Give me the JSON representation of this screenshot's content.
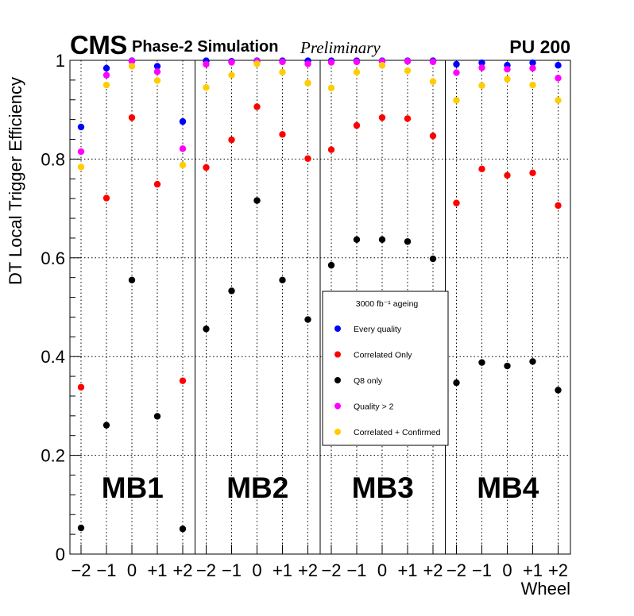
{
  "header": {
    "experiment": "CMS",
    "simulation": "Phase-2 Simulation",
    "status": "Preliminary",
    "pileup": "PU 200"
  },
  "chart_data": {
    "type": "scatter",
    "title": "",
    "xlabel": "Wheel",
    "ylabel": "DT Local Trigger Efficiency",
    "ylim": [
      0,
      1.0
    ],
    "yticks": [
      "0",
      "0.2",
      "0.4",
      "0.6",
      "0.8",
      "1"
    ],
    "grid": true,
    "stations": [
      "MB1",
      "MB2",
      "MB3",
      "MB4"
    ],
    "wheel_labels": [
      "−2",
      "−1",
      "0",
      "+1",
      "+2"
    ],
    "legend": {
      "title": "3000 fb⁻¹ ageing",
      "position": "center-right"
    },
    "series": [
      {
        "name": "Every quality",
        "color": "#0000ff",
        "values": [
          [
            0.865,
            0.984,
            0.999,
            0.988,
            0.876
          ],
          [
            0.999,
            0.998,
            0.999,
            0.999,
            0.999
          ],
          [
            0.999,
            0.999,
            0.999,
            0.999,
            0.999
          ],
          [
            0.992,
            0.995,
            0.99,
            0.995,
            0.99
          ]
        ]
      },
      {
        "name": "Correlated Only",
        "color": "#ff0000",
        "values": [
          [
            0.338,
            0.721,
            0.884,
            0.749,
            0.351
          ],
          [
            0.783,
            0.839,
            0.906,
            0.85,
            0.801
          ],
          [
            0.819,
            0.868,
            0.884,
            0.882,
            0.847
          ],
          [
            0.711,
            0.78,
            0.767,
            0.772,
            0.706
          ]
        ]
      },
      {
        "name": "Q8 only",
        "color": "#000000",
        "values": [
          [
            0.053,
            0.261,
            0.555,
            0.279,
            0.051
          ],
          [
            0.456,
            0.533,
            0.716,
            0.555,
            0.475
          ],
          [
            0.585,
            0.637,
            0.637,
            0.633,
            0.598
          ],
          [
            0.347,
            0.388,
            0.381,
            0.39,
            0.332
          ]
        ]
      },
      {
        "name": "Quality > 2",
        "color": "#ff00ff",
        "values": [
          [
            0.815,
            0.97,
            0.998,
            0.977,
            0.821
          ],
          [
            0.992,
            0.996,
            0.998,
            0.997,
            0.993
          ],
          [
            0.996,
            0.997,
            0.998,
            0.998,
            0.997
          ],
          [
            0.975,
            0.985,
            0.982,
            0.984,
            0.964
          ]
        ]
      },
      {
        "name": "Correlated + Confirmed",
        "color": "#ffcc00",
        "values": [
          [
            0.784,
            0.95,
            0.988,
            0.959,
            0.788
          ],
          [
            0.945,
            0.97,
            0.993,
            0.976,
            0.954
          ],
          [
            0.944,
            0.976,
            0.99,
            0.979,
            0.957
          ],
          [
            0.919,
            0.949,
            0.962,
            0.95,
            0.919
          ]
        ]
      }
    ]
  }
}
